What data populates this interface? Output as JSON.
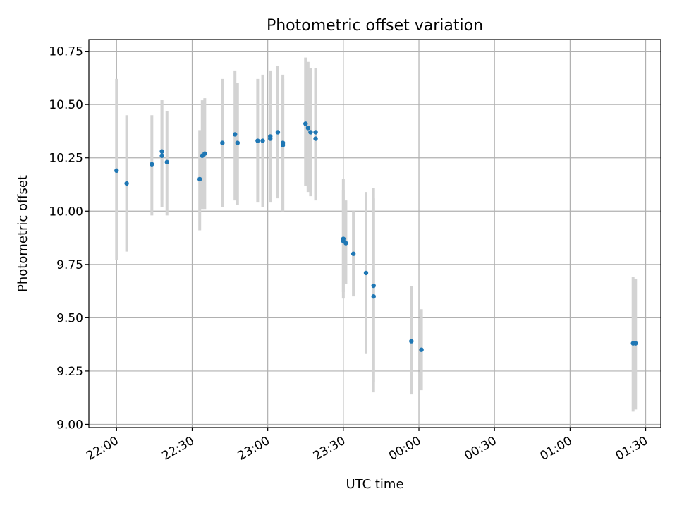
{
  "chart_data": {
    "type": "scatter",
    "title": "Photometric offset variation",
    "xlabel": "UTC time",
    "ylabel": "Photometric offset",
    "x_tick_labels": [
      "22:00",
      "22:30",
      "23:00",
      "23:30",
      "00:00",
      "00:30",
      "01:00",
      "01:30"
    ],
    "y_tick_labels": [
      "9.00",
      "9.25",
      "9.50",
      "9.75",
      "10.00",
      "10.25",
      "10.50",
      "10.75"
    ],
    "y_ticks": [
      9.0,
      9.25,
      9.5,
      9.75,
      10.0,
      10.25,
      10.5,
      10.75
    ],
    "xlim": [
      "21:49",
      "01:36"
    ],
    "ylim": [
      8.985,
      10.805
    ],
    "grid": true,
    "colors": {
      "point": "#1f77b4",
      "errorbar": "#d3d3d3",
      "grid": "#b0b0b0"
    },
    "series": [
      {
        "points": [
          {
            "t": "22:00",
            "y": 10.19,
            "lo": 9.77,
            "hi": 10.62
          },
          {
            "t": "22:04",
            "y": 10.13,
            "lo": 9.81,
            "hi": 10.45
          },
          {
            "t": "22:14",
            "y": 10.22,
            "lo": 9.98,
            "hi": 10.45
          },
          {
            "t": "22:18",
            "y": 10.28,
            "lo": 10.05,
            "hi": 10.52
          },
          {
            "t": "22:18",
            "y": 10.26,
            "lo": 10.02,
            "hi": 10.52
          },
          {
            "t": "22:20",
            "y": 10.23,
            "lo": 9.98,
            "hi": 10.47
          },
          {
            "t": "22:33",
            "y": 10.15,
            "lo": 9.91,
            "hi": 10.38
          },
          {
            "t": "22:34",
            "y": 10.26,
            "lo": 10.01,
            "hi": 10.52
          },
          {
            "t": "22:35",
            "y": 10.27,
            "lo": 10.01,
            "hi": 10.53
          },
          {
            "t": "22:42",
            "y": 10.32,
            "lo": 10.02,
            "hi": 10.62
          },
          {
            "t": "22:47",
            "y": 10.36,
            "lo": 10.05,
            "hi": 10.66
          },
          {
            "t": "22:48",
            "y": 10.32,
            "lo": 10.03,
            "hi": 10.6
          },
          {
            "t": "22:56",
            "y": 10.33,
            "lo": 10.04,
            "hi": 10.62
          },
          {
            "t": "22:58",
            "y": 10.33,
            "lo": 10.02,
            "hi": 10.64
          },
          {
            "t": "23:01",
            "y": 10.35,
            "lo": 10.04,
            "hi": 10.66
          },
          {
            "t": "23:01",
            "y": 10.34,
            "lo": 10.05,
            "hi": 10.64
          },
          {
            "t": "23:04",
            "y": 10.37,
            "lo": 10.06,
            "hi": 10.68
          },
          {
            "t": "23:06",
            "y": 10.32,
            "lo": 10.0,
            "hi": 10.64
          },
          {
            "t": "23:06",
            "y": 10.31,
            "lo": 10.0,
            "hi": 10.62
          },
          {
            "t": "23:15",
            "y": 10.41,
            "lo": 10.12,
            "hi": 10.72
          },
          {
            "t": "23:16",
            "y": 10.39,
            "lo": 10.09,
            "hi": 10.7
          },
          {
            "t": "23:17",
            "y": 10.37,
            "lo": 10.07,
            "hi": 10.67
          },
          {
            "t": "23:19",
            "y": 10.37,
            "lo": 10.08,
            "hi": 10.67
          },
          {
            "t": "23:19",
            "y": 10.34,
            "lo": 10.05,
            "hi": 10.63
          },
          {
            "t": "23:30",
            "y": 9.87,
            "lo": 9.59,
            "hi": 10.15
          },
          {
            "t": "23:30",
            "y": 9.86,
            "lo": 9.62,
            "hi": 10.1
          },
          {
            "t": "23:31",
            "y": 9.85,
            "lo": 9.66,
            "hi": 10.05
          },
          {
            "t": "23:34",
            "y": 9.8,
            "lo": 9.6,
            "hi": 10.0
          },
          {
            "t": "23:39",
            "y": 9.71,
            "lo": 9.33,
            "hi": 10.09
          },
          {
            "t": "23:42",
            "y": 9.65,
            "lo": 9.2,
            "hi": 10.11
          },
          {
            "t": "23:42",
            "y": 9.6,
            "lo": 9.15,
            "hi": 10.06
          },
          {
            "t": "23:57",
            "y": 9.39,
            "lo": 9.14,
            "hi": 9.65
          },
          {
            "t": "00:01",
            "y": 9.35,
            "lo": 9.16,
            "hi": 9.54
          },
          {
            "t": "01:25",
            "y": 9.38,
            "lo": 9.06,
            "hi": 9.69
          },
          {
            "t": "01:26",
            "y": 9.38,
            "lo": 9.07,
            "hi": 9.68
          }
        ]
      }
    ]
  }
}
